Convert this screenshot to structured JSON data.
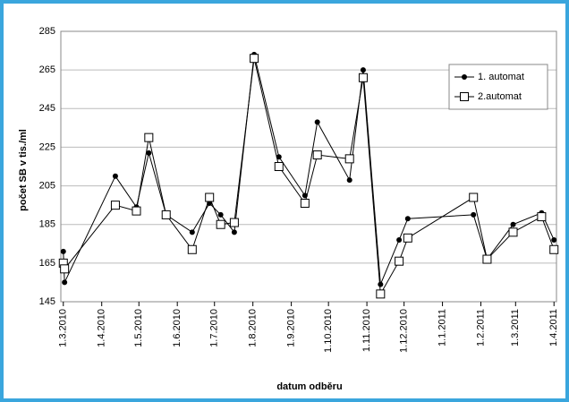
{
  "chart_data": {
    "type": "line",
    "x_label": "datum odběru",
    "y_label": "počet SB v tis./ml",
    "x": [
      "2010-03-01",
      "2010-03-02",
      "2010-04-12",
      "2010-04-29",
      "2010-05-09",
      "2010-05-23",
      "2010-06-13",
      "2010-06-27",
      "2010-07-06",
      "2010-07-17",
      "2010-08-02",
      "2010-08-22",
      "2010-09-12",
      "2010-09-22",
      "2010-10-18",
      "2010-10-29",
      "2010-11-12",
      "2010-11-27",
      "2010-12-04",
      "2011-01-26",
      "2011-02-06",
      "2011-02-27",
      "2011-03-22",
      "2011-04-01"
    ],
    "series": [
      {
        "name": "1. automat",
        "color": "#000000",
        "marker": "circle",
        "values": [
          171,
          155,
          210,
          194,
          222,
          190,
          181,
          196,
          190,
          181,
          273,
          220,
          200,
          238,
          208,
          265,
          154,
          177,
          188,
          190,
          167,
          185,
          191,
          177
        ]
      },
      {
        "name": "2.automat",
        "color": "#000000",
        "marker": "square",
        "values": [
          165,
          162,
          195,
          192,
          230,
          190,
          172,
          199,
          185,
          186,
          271,
          215,
          196,
          221,
          219,
          261,
          149,
          166,
          178,
          199,
          167,
          181,
          189,
          172
        ]
      }
    ],
    "xlim": [
      "2010-02-27",
      "2011-04-03"
    ],
    "xticks": [
      {
        "value": "2010-03-01",
        "label": "1.3.2010"
      },
      {
        "value": "2010-04-01",
        "label": "1.4.2010"
      },
      {
        "value": "2010-05-01",
        "label": "1.5.2010"
      },
      {
        "value": "2010-06-01",
        "label": "1.6.2010"
      },
      {
        "value": "2010-07-01",
        "label": "1.7.2010"
      },
      {
        "value": "2010-08-01",
        "label": "1.8.2010"
      },
      {
        "value": "2010-09-01",
        "label": "1.9.2010"
      },
      {
        "value": "2010-10-01",
        "label": "1.10.2010"
      },
      {
        "value": "2010-11-01",
        "label": "1.11.2010"
      },
      {
        "value": "2010-12-01",
        "label": "1.12.2010"
      },
      {
        "value": "2011-01-01",
        "label": "1.1.2011"
      },
      {
        "value": "2011-02-01",
        "label": "1.2.2011"
      },
      {
        "value": "2011-03-01",
        "label": "1.3.2011"
      },
      {
        "value": "2011-04-01",
        "label": "1.4.2011"
      }
    ],
    "ylim": [
      145,
      285
    ],
    "yticks": [
      145,
      165,
      185,
      205,
      225,
      245,
      265,
      285
    ],
    "grid": true,
    "legend": "upper right"
  }
}
